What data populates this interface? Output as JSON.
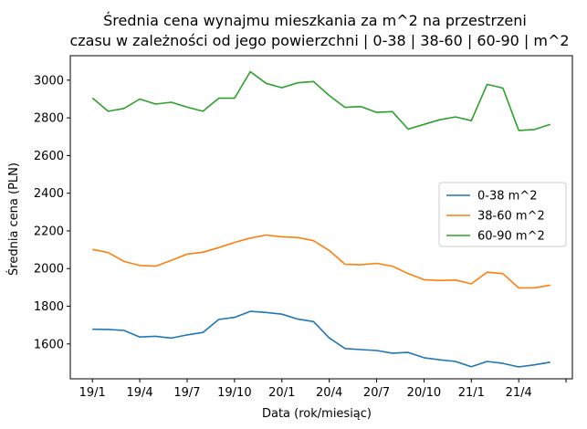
{
  "chart_data": {
    "type": "line",
    "title_line1": "Średnia cena wynajmu mieszkania za m^2 na przestrzeni",
    "title_line2": "czasu w zależności od jego powierzchni | 0-38 | 38-60 | 60-90 | m^2",
    "xlabel": "Data (rok/miesiąc)",
    "ylabel": "Średnia cena (PLN)",
    "x_tick_labels": [
      "19/1",
      "19/4",
      "19/7",
      "19/10",
      "20/1",
      "20/4",
      "20/7",
      "20/10",
      "21/1",
      "21/4",
      ""
    ],
    "y_ticks": [
      1600,
      1800,
      2000,
      2200,
      2400,
      2600,
      2800,
      3000
    ],
    "ylim": [
      1415,
      3130
    ],
    "xlim": [
      -1.4,
      30.4
    ],
    "grid": false,
    "legend_position": "center-right",
    "x_index": [
      0,
      1,
      2,
      3,
      4,
      5,
      6,
      7,
      8,
      9,
      10,
      11,
      12,
      13,
      14,
      15,
      16,
      17,
      18,
      19,
      20,
      21,
      22,
      23,
      24,
      25,
      26,
      27,
      28,
      29
    ],
    "series": [
      {
        "name": "0-38 m^2",
        "color": "#1f77b4",
        "values": [
          1678,
          1677,
          1672,
          1637,
          1641,
          1631,
          1648,
          1661,
          1730,
          1741,
          1773,
          1767,
          1758,
          1732,
          1719,
          1632,
          1576,
          1570,
          1565,
          1551,
          1555,
          1527,
          1516,
          1507,
          1479,
          1507,
          1497,
          1478,
          1489,
          1503
        ]
      },
      {
        "name": "38-60 m^2",
        "color": "#ff7f0e",
        "values": [
          2102,
          2085,
          2038,
          2016,
          2013,
          2044,
          2077,
          2087,
          2111,
          2139,
          2162,
          2178,
          2169,
          2165,
          2148,
          2096,
          2023,
          2020,
          2028,
          2013,
          1973,
          1941,
          1937,
          1939,
          1919,
          1981,
          1973,
          1897,
          1898,
          1912
        ]
      },
      {
        "name": "60-90 m^2",
        "color": "#2ca02c",
        "values": [
          2905,
          2835,
          2850,
          2900,
          2873,
          2883,
          2857,
          2835,
          2904,
          2904,
          3045,
          2983,
          2960,
          2986,
          2993,
          2919,
          2856,
          2860,
          2829,
          2833,
          2740,
          2765,
          2790,
          2805,
          2785,
          2978,
          2958,
          2733,
          2738,
          2765
        ]
      }
    ]
  }
}
